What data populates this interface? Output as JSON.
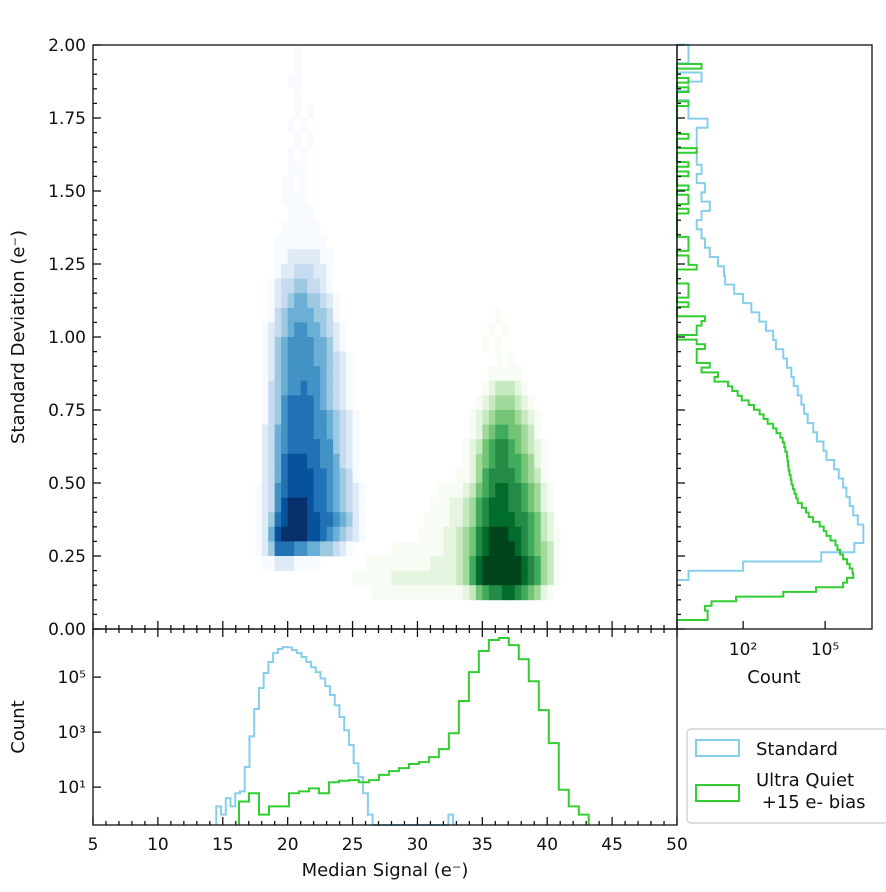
{
  "chart_data": [
    {
      "type": "heatmap",
      "panel": "main",
      "xlabel": "Median Signal (e⁻)",
      "ylabel": "Standard Deviation (e⁻)",
      "xlim": [
        5,
        50
      ],
      "ylim": [
        0,
        2
      ],
      "yticks": [
        "0.00",
        "0.25",
        "0.50",
        "0.75",
        "1.00",
        "1.25",
        "1.50",
        "1.75",
        "2.00"
      ],
      "grid": false,
      "series": [
        {
          "name": "Standard",
          "colormap": [
            "#f7fbff",
            "#deebf7",
            "#c6dbef",
            "#9ecae1",
            "#6baed6",
            "#4292c6",
            "#2171b5",
            "#08519c",
            "#08306b"
          ],
          "x_start": 16.5,
          "x_step": 0.5,
          "y_top": 2.0,
          "y_step": 0.05,
          "density_levels": [
            "00000000100000000000",
            "00000000100000000000",
            "00000001100000000000",
            "00000000100000000000",
            "00000000101000000000",
            "00000001010000000000",
            "00000000101000000000",
            "00000001010000000000",
            "00000001110000000000",
            "00000011010000000000",
            "00000011110000000000",
            "00000001111000000000",
            "00000011111100000000",
            "00000111111110000000",
            "00000112222211000000",
            "00000122333221000000",
            "00001233443321000000",
            "00001234554432100000",
            "00001345555443100000",
            "00012345665543210000",
            "00012456666554210000",
            "00012456666554321000",
            "00012456666654321000",
            "00013456676654321000",
            "00013467777654321000",
            "00013467777665432100",
            "00023567777665432100",
            "00023567777766432100",
            "00023578887766532100",
            "00023578888776543100",
            "00123678888776543210",
            "00123689998776543210",
            "00124789998877654210",
            "00125899998876543210",
            "00124777665544321000",
            "00011222111100000000"
          ]
        },
        {
          "name": "Ultra Quiet +15 e- bias",
          "colormap": [
            "#f7fcf5",
            "#e5f5e0",
            "#c7e9c0",
            "#a1d99b",
            "#74c476",
            "#41ab5d",
            "#238b45",
            "#006d2c",
            "#00441b"
          ],
          "x_start": 22,
          "x_step": 0.5,
          "y_top": 1.1,
          "y_step": 0.05,
          "density_levels": [
            "0000000000000000000000000000100000000000",
            "0000000000000000000000000001010000000000",
            "0000000000000000000000000010100000000000",
            "0000000000000000000000000000101000000000",
            "0000000000000000000000000001111100000000",
            "0000000000000000000000000012333210000000",
            "0000000000000000000000000123444321000000",
            "0000000000000000000000001234555432100000",
            "0000000000000000000000001245665543100000",
            "0000000000000000000000012356776543210000",
            "0000000000000000000000012456776654210000",
            "0000000000000000000000112467777654310000",
            "0000000000000000000111123567887765421000",
            "0000000000000000001112234678887765421000",
            "0000000000000000011112234678888776532000",
            "0000000000000000111122345789998876532100",
            "0000000000001111111122345789999876543100",
            "0000000011111111112222346899999987643100",
            "0000001111112222222222346899999987643100",
            "0000000001111111111111123567788765421000",
            "0000000000000000000000000000000000000000"
          ]
        }
      ]
    },
    {
      "type": "histogram",
      "panel": "bottom",
      "xlabel": "Median Signal (e⁻)",
      "ylabel": "Count",
      "xlim": [
        5,
        50
      ],
      "yscale": "log",
      "ylim": [
        0.42,
        5600000
      ],
      "xticks": [
        "5",
        "10",
        "15",
        "20",
        "25",
        "30",
        "35",
        "40",
        "45",
        "50"
      ],
      "yticks": [
        {
          "value": 10,
          "label": "10¹"
        },
        {
          "value": 1000,
          "label": "10³"
        },
        {
          "value": 100000,
          "label": "10⁵"
        }
      ],
      "series": [
        {
          "name": "Standard",
          "color": "#87ceeb",
          "bin_start": 14.5,
          "bin_width": 0.365,
          "counts": [
            2,
            1,
            4,
            2,
            6,
            7,
            54,
            700,
            6900,
            40000,
            141000,
            355000,
            741000,
            1050000,
            1230000,
            1200000,
            955000,
            741000,
            537000,
            355000,
            229000,
            151000,
            89000,
            46800,
            22400,
            9500,
            3550,
            1170,
            340,
            74,
            23,
            6,
            1,
            0,
            0,
            0,
            0,
            0,
            0,
            0,
            0,
            0,
            0,
            0,
            0,
            0,
            0,
            0,
            0,
            1
          ]
        },
        {
          "name": "Ultra Quiet +15 e- bias",
          "color": "#32cd32",
          "bin_start": 16.25,
          "bin_width": 0.77,
          "counts": [
            3,
            6,
            1,
            2,
            2,
            6,
            7,
            9,
            6,
            15,
            17,
            18,
            15,
            18,
            28,
            38,
            49,
            69,
            81,
            123,
            240,
            912,
            13500,
            151000,
            891000,
            2240000,
            2630000,
            1450000,
            447000,
            70800,
            6310,
            398,
            8,
            2,
            1
          ]
        }
      ]
    },
    {
      "type": "histogram",
      "panel": "right",
      "orientation": "horizontal",
      "xlabel": "Count",
      "xscale": "log",
      "xlim": [
        0.38,
        5200000
      ],
      "ylim": [
        0,
        2
      ],
      "xticks": [
        {
          "value": 100,
          "label": "10²"
        },
        {
          "value": 100000,
          "label": "10⁵"
        }
      ],
      "series": [
        {
          "name": "Standard",
          "color": "#87ceeb",
          "bin_start": 0.168,
          "bin_width": 0.0316,
          "counts": [
            1,
            100,
            72000,
            1170000,
            2500000,
            2500000,
            1580000,
            1070000,
            794000,
            603000,
            457000,
            316000,
            214000,
            112000,
            87000,
            50000,
            37000,
            23000,
            17000,
            13500,
            10000,
            7100,
            5800,
            4000,
            2950,
            1580,
            1260,
            690,
            390,
            200,
            100,
            47,
            22,
            20,
            12,
            6,
            4,
            3,
            2,
            3,
            6,
            3,
            4,
            2,
            3,
            2,
            2,
            2,
            2,
            5,
            1,
            1,
            0,
            1,
            3,
            0,
            1,
            1
          ]
        },
        {
          "name": "Ultra Quiet +15 e- bias",
          "color": "#32cd32",
          "bin_start": 0.031,
          "bin_width": 0.016,
          "counts": [
            5,
            5,
            4,
            7,
            55,
            2950,
            46800,
            457000,
            631000,
            1070000,
            1000000,
            794000,
            631000,
            457000,
            355000,
            282000,
            240000,
            158000,
            112000,
            89000,
            63000,
            36300,
            25100,
            20000,
            14100,
            10000,
            8700,
            7600,
            6600,
            5900,
            5500,
            5000,
            4600,
            4400,
            4200,
            4000,
            3500,
            3200,
            2800,
            2300,
            1660,
            1260,
            790,
            560,
            400,
            250,
            160,
            89,
            63,
            40,
            28,
            9,
            12,
            3,
            6,
            2,
            2,
            2,
            4,
            2,
            0,
            2,
            2,
            3,
            4,
            0,
            0,
            1,
            0,
            1,
            1,
            1,
            0,
            0,
            0,
            2,
            1,
            1,
            0,
            1,
            1,
            1,
            0,
            0,
            0,
            0,
            0,
            1,
            0,
            1,
            1,
            0,
            1,
            0,
            0,
            1,
            0,
            1,
            0,
            0,
            2,
            0,
            0,
            1,
            0,
            0,
            0,
            0,
            0,
            0,
            1,
            0,
            0,
            1,
            0,
            1,
            0,
            0,
            3
          ]
        }
      ]
    }
  ],
  "legend": {
    "placement": "lower-right",
    "items": [
      {
        "label": "Standard",
        "color": "#87ceeb"
      },
      {
        "label_line1": "Ultra Quiet",
        "label_line2": " +15 e- bias",
        "color": "#32cd32"
      }
    ]
  }
}
